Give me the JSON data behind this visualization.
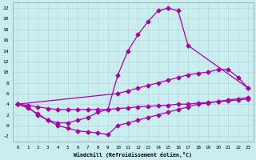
{
  "xlabel": "Windchill (Refroidissement éolien,°C)",
  "background_color": "#c8eef0",
  "grid_color": "#c0d8dc",
  "line_color": "#aa00aa",
  "xlim": [
    -0.5,
    23.5
  ],
  "ylim": [
    -3.0,
    23.0
  ],
  "xticks": [
    0,
    1,
    2,
    3,
    4,
    5,
    6,
    7,
    8,
    9,
    10,
    11,
    12,
    13,
    14,
    15,
    16,
    17,
    18,
    19,
    20,
    21,
    22,
    23
  ],
  "yticks": [
    -2,
    0,
    2,
    4,
    6,
    8,
    10,
    12,
    14,
    16,
    18,
    20,
    22
  ],
  "line1_x": [
    0,
    1,
    2,
    3,
    4,
    5,
    6,
    7,
    8,
    9,
    10,
    11,
    12,
    13,
    14,
    15,
    16,
    17,
    23
  ],
  "line1_y": [
    4.0,
    3.5,
    2.0,
    1.0,
    0.5,
    0.5,
    1.0,
    1.5,
    2.5,
    3.0,
    9.5,
    14.0,
    17.0,
    19.5,
    21.5,
    22.0,
    21.5,
    15.0,
    7.0
  ],
  "line2_x": [
    0,
    10,
    11,
    12,
    13,
    14,
    15,
    16,
    17,
    18,
    19,
    20,
    21,
    22,
    23
  ],
  "line2_y": [
    4.0,
    6.0,
    6.5,
    7.0,
    7.5,
    8.0,
    8.5,
    9.0,
    9.5,
    9.8,
    10.0,
    10.5,
    10.5,
    9.0,
    7.0
  ],
  "line3_x": [
    0,
    1,
    2,
    3,
    4,
    5,
    6,
    7,
    8,
    9,
    10,
    11,
    12,
    13,
    14,
    15,
    16,
    17,
    18,
    19,
    20,
    21,
    22,
    23
  ],
  "line3_y": [
    4.0,
    3.3,
    2.2,
    1.0,
    0.0,
    -0.5,
    -1.0,
    -1.2,
    -1.4,
    -1.7,
    0.0,
    0.5,
    1.0,
    1.5,
    2.0,
    2.5,
    3.0,
    3.5,
    4.0,
    4.2,
    4.5,
    4.8,
    5.0,
    5.2
  ],
  "line4_x": [
    0,
    1,
    2,
    3,
    4,
    5,
    6,
    7,
    8,
    9,
    10,
    11,
    12,
    13,
    14,
    15,
    16,
    17,
    18,
    19,
    20,
    21,
    22,
    23
  ],
  "line4_y": [
    4.0,
    3.8,
    3.5,
    3.2,
    3.0,
    3.0,
    3.0,
    3.0,
    3.0,
    3.0,
    3.2,
    3.3,
    3.5,
    3.6,
    3.7,
    3.8,
    4.0,
    4.0,
    4.2,
    4.3,
    4.5,
    4.6,
    4.8,
    5.0
  ],
  "marker_size": 2.5,
  "line_width": 0.9
}
